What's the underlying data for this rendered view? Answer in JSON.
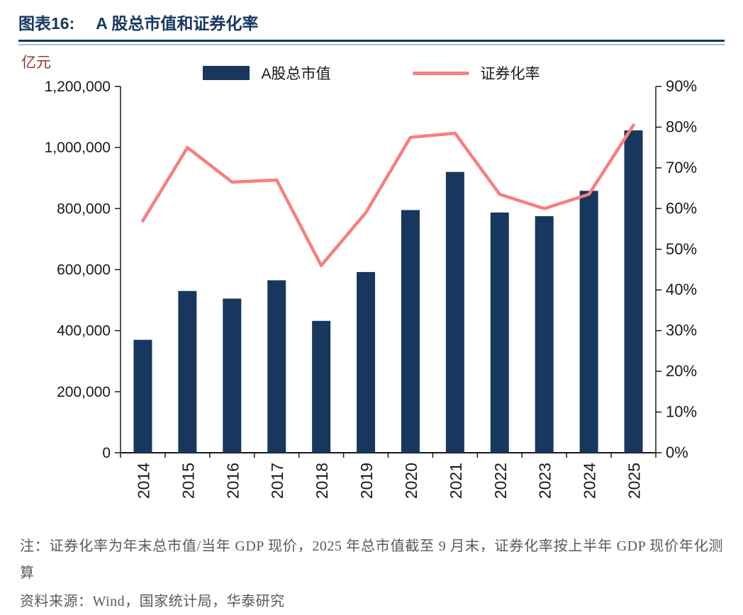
{
  "header": {
    "chart_no": "图表16:",
    "title": "A 股总市值和证券化率"
  },
  "chart_data": {
    "type": "bar+line",
    "title": "A 股总市值和证券化率",
    "unit_label": "亿元",
    "legend_position": "top",
    "grid": false,
    "categories": [
      "2014",
      "2015",
      "2016",
      "2017",
      "2018",
      "2019",
      "2020",
      "2021",
      "2022",
      "2023",
      "2024",
      "2025"
    ],
    "series": [
      {
        "name": "A股总市值",
        "type": "bar",
        "axis": "left",
        "color": "#17375e",
        "values": [
          370000,
          530000,
          505000,
          565000,
          432000,
          592000,
          795000,
          920000,
          787000,
          775000,
          858000,
          1056000
        ]
      },
      {
        "name": "证券化率",
        "type": "line",
        "axis": "right",
        "color": "#f97e7e",
        "values": [
          57,
          75,
          66.5,
          67,
          46,
          59,
          77.5,
          78.5,
          63.5,
          60,
          63.5,
          80.5
        ]
      }
    ],
    "left_axis": {
      "min": 0,
      "max": 1200000,
      "labels": [
        "0",
        "200,000",
        "400,000",
        "600,000",
        "800,000",
        "1,000,000",
        "1,200,000"
      ]
    },
    "right_axis": {
      "min": 0,
      "max": 90,
      "unit": "%",
      "labels": [
        "0%",
        "10%",
        "20%",
        "30%",
        "40%",
        "50%",
        "60%",
        "70%",
        "80%",
        "90%"
      ]
    }
  },
  "notes": {
    "note": "注：证券化率为年末总市值/当年 GDP 现价，2025 年总市值截至 9 月末，证券化率按上半年 GDP 现价年化测算",
    "source": "资料来源：Wind，国家统计局，华泰研究"
  },
  "colors": {
    "accent_navy": "#17375e",
    "accent_pink": "#f97e7e",
    "rule_light_blue": "#9dc3e6",
    "axis_black": "#1a1a1a",
    "note_gray": "#595959",
    "unit_red": "#953735"
  }
}
